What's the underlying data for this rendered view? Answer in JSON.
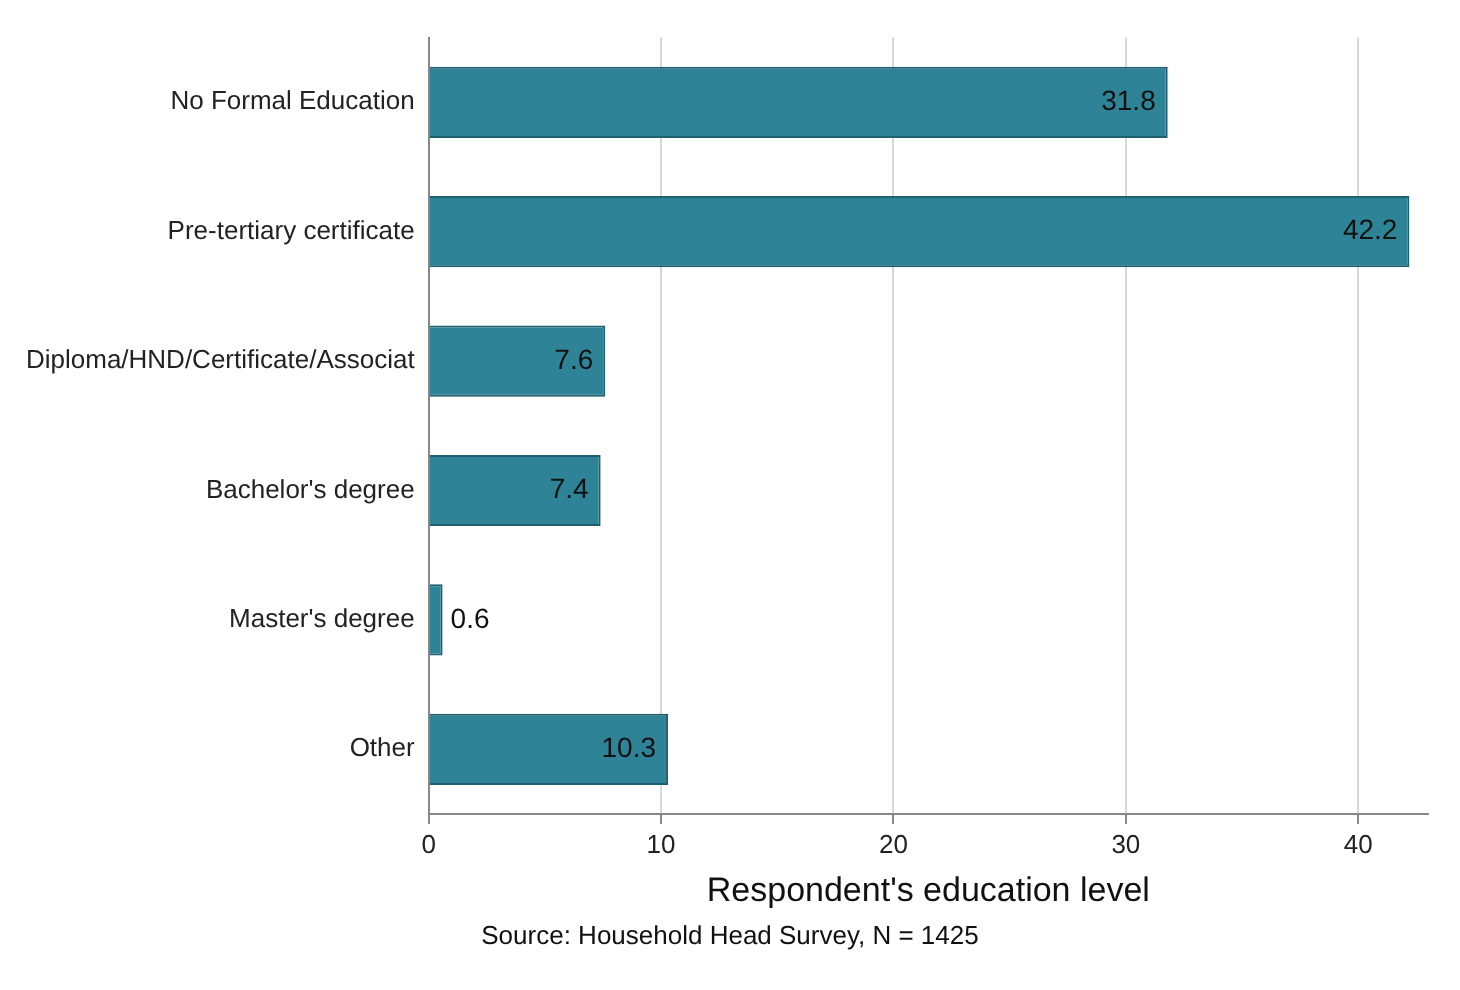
{
  "chart_data": {
    "type": "bar",
    "orientation": "horizontal",
    "categories": [
      "No Formal Education",
      "Pre-tertiary certificate",
      "Diploma/HND/Certificate/Associat",
      "Bachelor's degree",
      "Master's degree",
      "Other"
    ],
    "values": [
      31.8,
      42.2,
      7.6,
      7.4,
      0.6,
      10.3
    ],
    "color": "#2f8396",
    "xlim": [
      0,
      43
    ],
    "xticks": [
      0,
      10,
      20,
      30,
      40
    ],
    "xlabel": "Respondent's education level",
    "annotations": [
      "Source: Household Head Survey, N = 1425"
    ],
    "data_labels": true,
    "grid": "x",
    "legend": false
  }
}
